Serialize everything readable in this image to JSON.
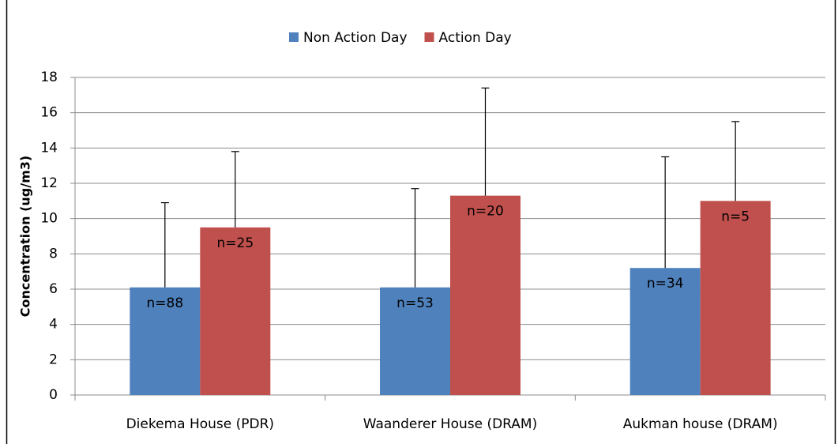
{
  "chart_data": {
    "type": "bar",
    "y_label": "Concentration (ug/m3)",
    "categories": [
      "Diekema House (PDR)",
      "Waanderer House (DRAM)",
      "Aukman house (DRAM)"
    ],
    "series": [
      {
        "name": "Non Action Day",
        "color": "#4f81bd",
        "values": [
          6.1,
          6.1,
          7.2
        ],
        "errors": [
          4.8,
          5.6,
          6.3
        ],
        "notes": [
          "n=88",
          "n=53",
          "n=34"
        ]
      },
      {
        "name": "Action Day",
        "color": "#c0504d",
        "values": [
          9.5,
          11.3,
          11.0
        ],
        "errors": [
          4.3,
          6.1,
          4.5
        ],
        "notes": [
          "n=25",
          "n=20",
          "n=5"
        ]
      }
    ],
    "ylim": [
      0,
      18
    ],
    "yticks": [
      0,
      2,
      4,
      6,
      8,
      10,
      12,
      14,
      16,
      18
    ],
    "grid": true,
    "legend": "top"
  }
}
